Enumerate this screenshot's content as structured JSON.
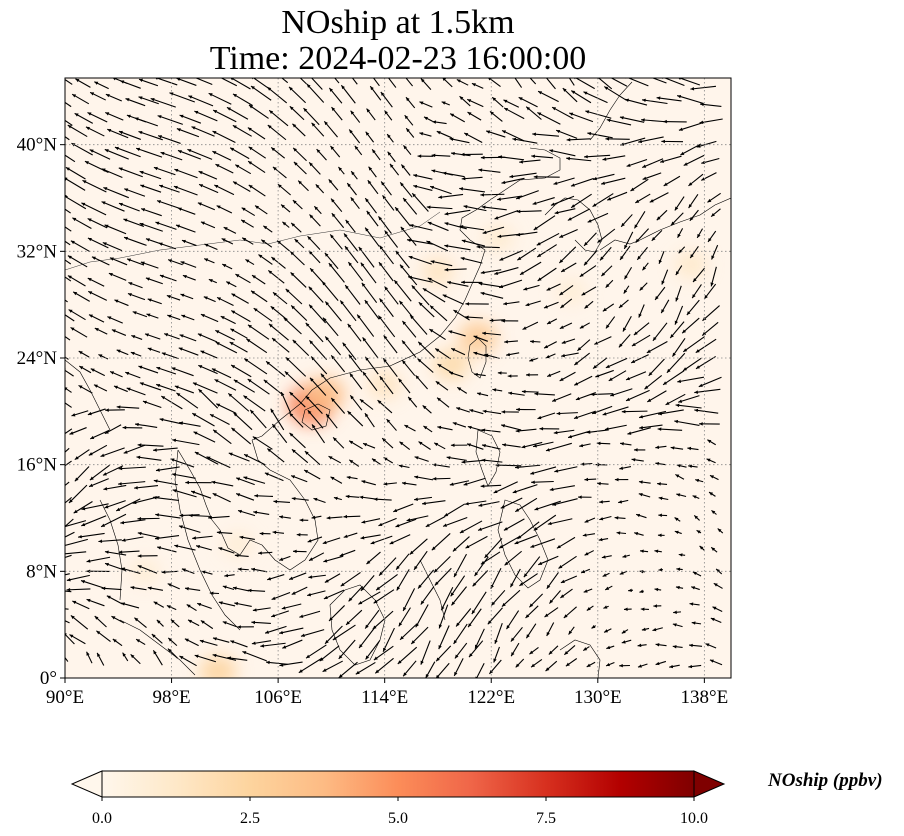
{
  "title": {
    "line1": "NOship at 1.5km",
    "line2": "Time: 2024-02-23 16:00:00"
  },
  "map": {
    "lon_range": [
      90,
      140
    ],
    "lat_range": [
      0,
      45
    ],
    "projection": "PlateCarree",
    "gridlines": "dotted gray",
    "x_ticks": [
      {
        "value": 90,
        "label": "90°E"
      },
      {
        "value": 98,
        "label": "98°E"
      },
      {
        "value": 106,
        "label": "106°E"
      },
      {
        "value": 114,
        "label": "114°E"
      },
      {
        "value": 122,
        "label": "122°E"
      },
      {
        "value": 130,
        "label": "130°E"
      },
      {
        "value": 138,
        "label": "138°E"
      }
    ],
    "y_ticks": [
      {
        "value": 0,
        "label": "0°"
      },
      {
        "value": 8,
        "label": "8°N"
      },
      {
        "value": 16,
        "label": "16°N"
      },
      {
        "value": 24,
        "label": "24°N"
      },
      {
        "value": 32,
        "label": "32°N"
      },
      {
        "value": 40,
        "label": "40°N"
      }
    ],
    "field_background_color": "#fff5eb",
    "hotspots": [
      {
        "lon": 108.5,
        "lat": 20.5,
        "value": 5.5
      },
      {
        "lon": 109.5,
        "lat": 21.3,
        "value": 3.5
      },
      {
        "lon": 121.0,
        "lat": 25.5,
        "value": 3.0
      },
      {
        "lon": 119.0,
        "lat": 23.5,
        "value": 2.2
      },
      {
        "lon": 118.0,
        "lat": 30.5,
        "value": 1.5
      },
      {
        "lon": 114.0,
        "lat": 22.0,
        "value": 1.5
      },
      {
        "lon": 101.5,
        "lat": 0.5,
        "value": 2.5
      },
      {
        "lon": 96.0,
        "lat": 8.0,
        "value": 0.8
      },
      {
        "lon": 103.0,
        "lat": 10.0,
        "value": 0.8
      },
      {
        "lon": 137.0,
        "lat": 31.0,
        "value": 1.2
      },
      {
        "lon": 128.0,
        "lat": 29.0,
        "value": 0.8
      },
      {
        "lon": 122.5,
        "lat": 33.0,
        "value": 1.0
      }
    ],
    "wind_vectors": "quiver field of wind arrows over the domain"
  },
  "colorbar": {
    "label": "NOship (ppbv)",
    "vmin": 0,
    "vmax": 10,
    "colormap": "OrRd",
    "extend": "both",
    "ticks": [
      {
        "value": 0,
        "label": "0.0"
      },
      {
        "value": 2.5,
        "label": "2.5"
      },
      {
        "value": 5,
        "label": "5.0"
      },
      {
        "value": 7.5,
        "label": "7.5"
      },
      {
        "value": 10,
        "label": "10.0"
      }
    ],
    "colors": [
      "#fff7ec",
      "#fee8c8",
      "#fdd49e",
      "#fdbb84",
      "#fc8d59",
      "#ef6548",
      "#d7301f",
      "#b30000",
      "#7f0000"
    ]
  }
}
